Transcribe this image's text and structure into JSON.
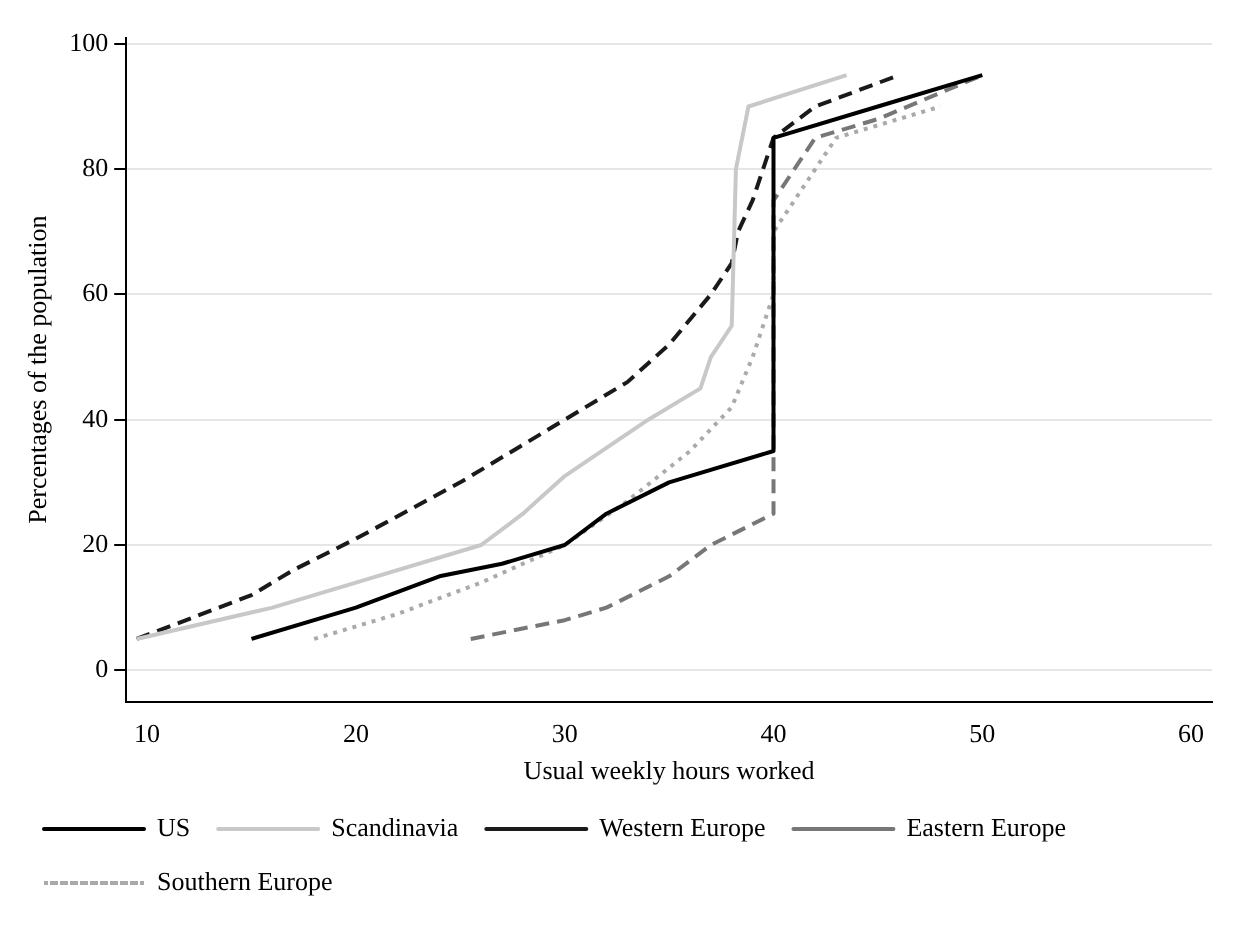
{
  "chart_data": {
    "type": "line",
    "xlabel": "Usual weekly hours worked",
    "ylabel": "Percentages of the population",
    "xlim": [
      9,
      61
    ],
    "xticks": [
      10,
      20,
      30,
      40,
      50,
      60
    ],
    "ylim": [
      -5,
      101
    ],
    "yticks": [
      0,
      20,
      40,
      60,
      80,
      100
    ],
    "grid": "y",
    "legend": "bottom",
    "marker": "none",
    "series": [
      {
        "name": "US",
        "color": "#000000",
        "line_style": "solid",
        "x": [
          15,
          20,
          24,
          27,
          30,
          32,
          35,
          40,
          40,
          45,
          50
        ],
        "values": [
          5,
          10,
          15,
          17,
          20,
          25,
          30,
          35,
          85,
          90,
          95
        ]
      },
      {
        "name": "Scandinavia",
        "color": "#c8c8c8",
        "line_style": "solid",
        "x": [
          9.5,
          16,
          20,
          26,
          28,
          30,
          34,
          36.5,
          37,
          38,
          38.2,
          38.8,
          43.5
        ],
        "values": [
          5,
          10,
          14,
          20,
          25,
          31,
          40,
          45,
          50,
          55,
          80,
          90,
          95
        ]
      },
      {
        "name": "Western Europe",
        "color": "#1a1a1a",
        "line_style": "dashed",
        "x": [
          9.5,
          15,
          17,
          20,
          25,
          30,
          33,
          35,
          37,
          38,
          38.3,
          39,
          40,
          42,
          46
        ],
        "values": [
          5,
          12,
          16,
          21,
          30,
          40,
          46,
          52,
          60,
          65,
          70,
          75,
          85,
          90,
          95
        ]
      },
      {
        "name": "Eastern Europe",
        "color": "#777777",
        "line_style": "dashed",
        "x": [
          25.5,
          30,
          32,
          35,
          37,
          40,
          40,
          41,
          42,
          45,
          50
        ],
        "values": [
          5,
          8,
          10,
          15,
          20,
          25,
          75,
          80,
          85,
          88,
          95
        ]
      },
      {
        "name": "Southern Europe",
        "color": "#aaaaaa",
        "line_style": "dotted",
        "x": [
          18,
          22,
          26,
          30,
          33,
          36,
          38,
          39,
          40,
          40,
          42,
          43,
          48
        ],
        "values": [
          5,
          9,
          14,
          20,
          27,
          35,
          42,
          50,
          60,
          70,
          80,
          85,
          90
        ]
      }
    ]
  }
}
